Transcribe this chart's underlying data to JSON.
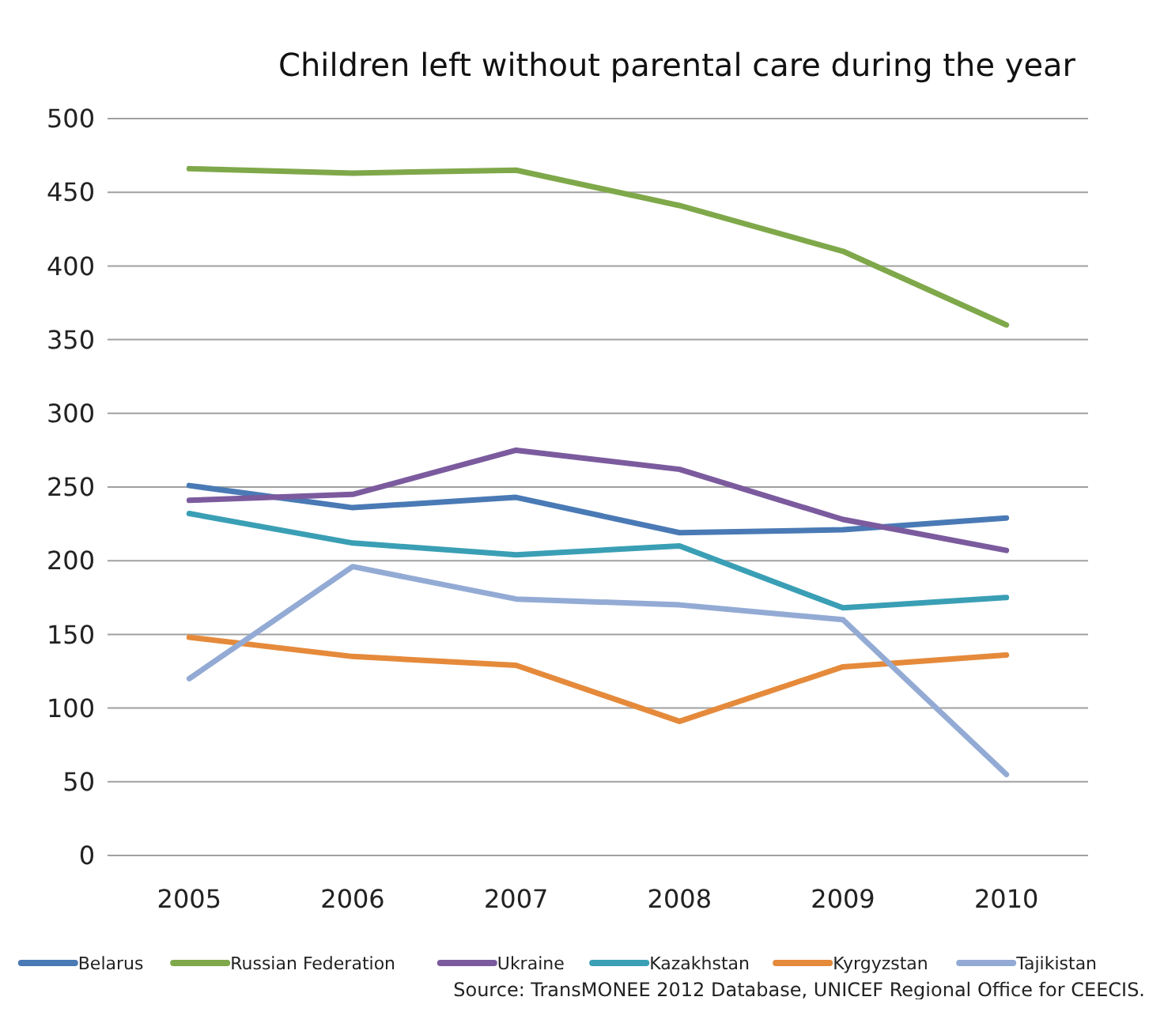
{
  "chart_data": {
    "type": "line",
    "title": "Children left without parental care during the year",
    "categories": [
      "2005",
      "2006",
      "2007",
      "2008",
      "2009",
      "2010"
    ],
    "series": [
      {
        "name": "Belarus",
        "color": "#4a7ab5",
        "values": [
          251,
          236,
          243,
          219,
          221,
          229
        ]
      },
      {
        "name": "Russian Federation",
        "color": "#7fa84a",
        "values": [
          466,
          463,
          465,
          441,
          410,
          360
        ]
      },
      {
        "name": "Ukraine",
        "color": "#7b5b9e",
        "values": [
          241,
          245,
          275,
          262,
          228,
          207
        ]
      },
      {
        "name": "Kazakhstan",
        "color": "#3a9fb5",
        "values": [
          232,
          212,
          204,
          210,
          168,
          175
        ]
      },
      {
        "name": "Kyrgyzstan",
        "color": "#e58a3b",
        "values": [
          148,
          135,
          129,
          91,
          128,
          136
        ]
      },
      {
        "name": "Tajikistan",
        "color": "#93abd4",
        "values": [
          120,
          196,
          174,
          170,
          160,
          55
        ]
      }
    ],
    "ylim": [
      0,
      500
    ],
    "yticks": [
      0,
      50,
      100,
      150,
      200,
      250,
      300,
      350,
      400,
      450,
      500
    ],
    "grid": "y",
    "legend": "bottom",
    "marker": "none",
    "line_style": "solid",
    "annotations": [
      "Source: TransMONEE 2012 Database, UNICEF Regional Office for CEECIS."
    ]
  }
}
